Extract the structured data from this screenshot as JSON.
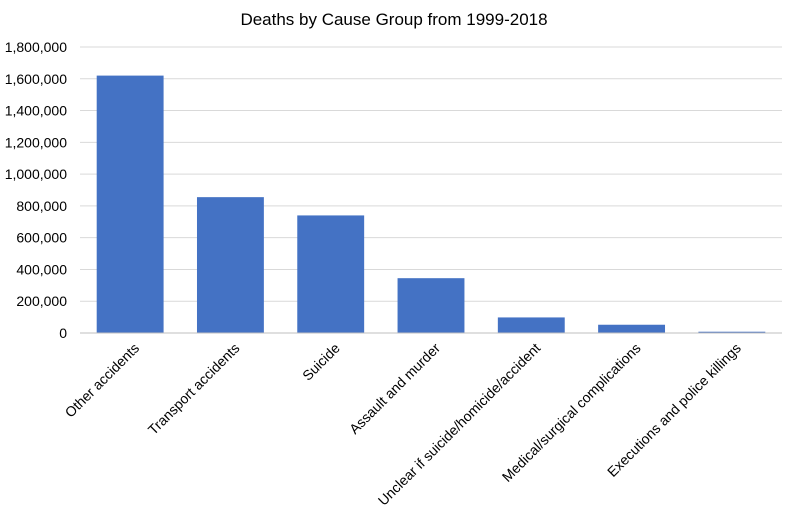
{
  "chart_data": {
    "type": "bar",
    "title": "Deaths by Cause Group from 1999-2018",
    "xlabel": "",
    "ylabel": "",
    "categories": [
      "Other accidents",
      "Transport accidents",
      "Suicide",
      "Assault and murder",
      "Unclear if suicide/homicide/accident",
      "Medical/surgical complications",
      "Executions and police killings"
    ],
    "values": [
      1620000,
      855000,
      740000,
      345000,
      98000,
      52000,
      8000
    ],
    "ylim": [
      0,
      1800000
    ],
    "yticks": [
      0,
      200000,
      400000,
      600000,
      800000,
      1000000,
      1200000,
      1400000,
      1600000,
      1800000
    ],
    "ytick_labels": [
      "0",
      "200,000",
      "400,000",
      "600,000",
      "800,000",
      "1,000,000",
      "1,200,000",
      "1,400,000",
      "1,600,000",
      "1,800,000"
    ],
    "bar_color": "#4472c4",
    "grid": true,
    "legend": "none"
  }
}
